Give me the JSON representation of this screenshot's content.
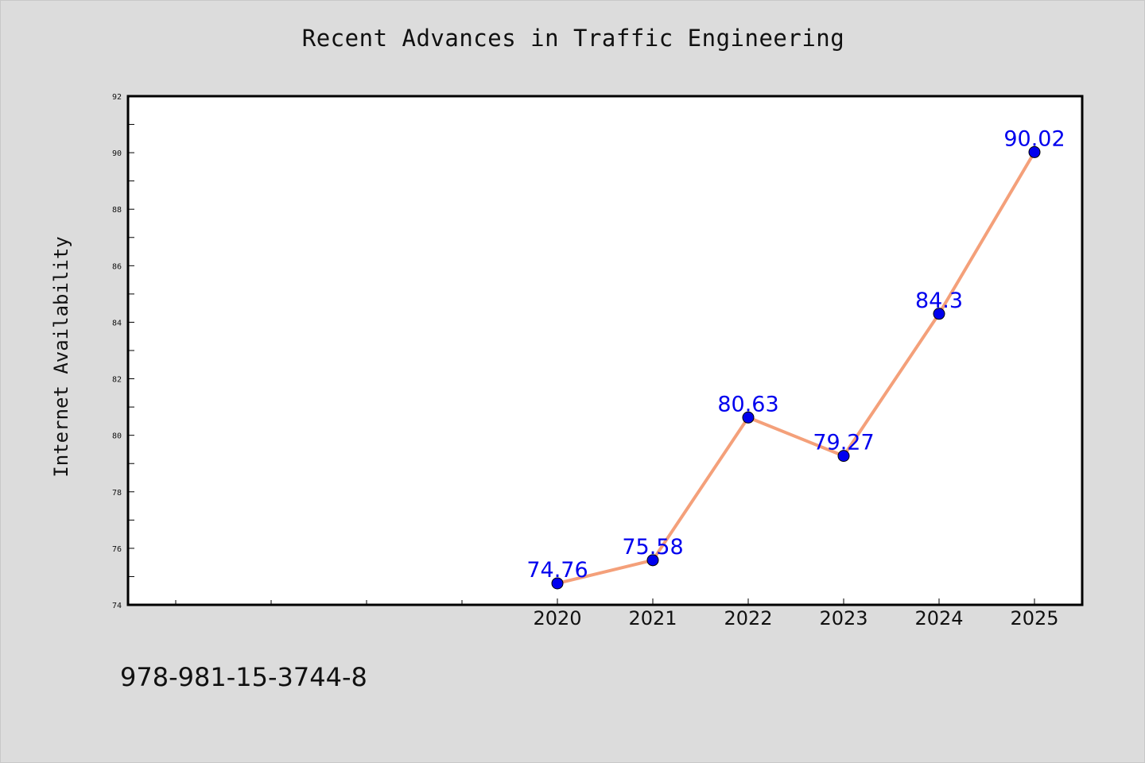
{
  "chart_data": {
    "type": "line",
    "title": "Recent Advances in Traffic Engineering",
    "xlabel": "",
    "ylabel": "Internet Availability",
    "categories": [
      "2020",
      "2021",
      "2022",
      "2023",
      "2024",
      "2025"
    ],
    "series": [
      {
        "values": [
          74.76,
          75.58,
          80.63,
          79.27,
          84.3,
          90.02
        ],
        "line_color": "#f4a07a",
        "marker_color": "#0000ee"
      }
    ],
    "data_labels": [
      "74.76",
      "75.58",
      "80.63",
      "79.27",
      "84.3",
      "90.02"
    ],
    "ylim": [
      74,
      92
    ],
    "yticks": [
      "74",
      "76",
      "78",
      "80",
      "82",
      "84",
      "86",
      "88",
      "90",
      "92"
    ],
    "grid": false,
    "legend": "none"
  },
  "footer": {
    "code": "978-981-15-3744-8"
  },
  "colors": {
    "background": "#dcdcdc",
    "plot_background": "#ffffff",
    "line": "#f4a07a",
    "marker": "#0000ee",
    "label": "#0000ee"
  }
}
